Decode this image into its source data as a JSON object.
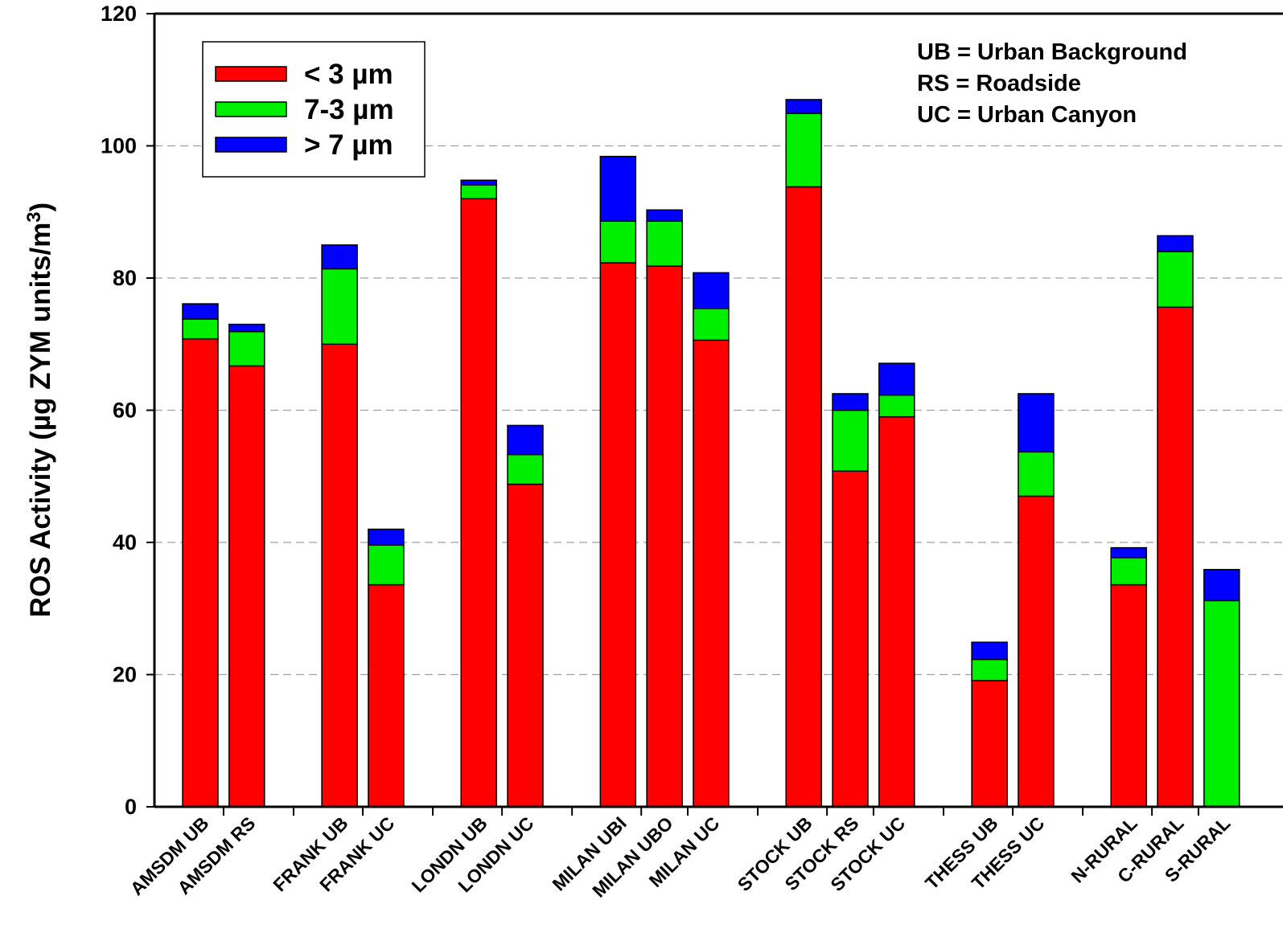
{
  "chart_data": {
    "type": "bar",
    "stacked": true,
    "title": "",
    "xlabel": "",
    "ylabel": "ROS Activity (µg ZYM units/m",
    "ylabel_superscript": "3",
    "ylabel_suffix": ")",
    "ylim": [
      0,
      120
    ],
    "yticks": [
      "0",
      "20",
      "40",
      "60",
      "80",
      "100",
      "120"
    ],
    "grid": "horizontal dashed",
    "legend_position": "top-left",
    "categories": [
      "AMSDM UB",
      "AMSDM RS",
      "FRANK UB",
      "FRANK UC",
      "LONDN UB",
      "LONDN UC",
      "MILAN UBI",
      "MILAN UBO",
      "MILAN UC",
      "STOCK UB",
      "STOCK RS",
      "STOCK UC",
      "THESS UB",
      "THESS UC",
      "N-RURAL",
      "C-RURAL",
      "S-RURAL"
    ],
    "groups": [
      [
        "AMSDM UB",
        "AMSDM RS"
      ],
      [
        "FRANK UB",
        "FRANK UC"
      ],
      [
        "LONDN UB",
        "LONDN UC"
      ],
      [
        "MILAN UBI",
        "MILAN UBO",
        "MILAN UC"
      ],
      [
        "STOCK UB",
        "STOCK RS",
        "STOCK UC"
      ],
      [
        "THESS UB",
        "THESS UC"
      ],
      [
        "N-RURAL",
        "C-RURAL",
        "S-RURAL"
      ]
    ],
    "series": [
      {
        "name": "< 3 µm",
        "color": "#ff0000",
        "values": [
          70.8,
          66.7,
          70.0,
          33.6,
          92.0,
          48.8,
          82.3,
          81.8,
          70.6,
          93.8,
          50.8,
          59.0,
          19.1,
          47.0,
          33.6,
          75.6,
          0
        ]
      },
      {
        "name": "7-3 µm",
        "color": "#00ee00",
        "values": [
          3.0,
          5.2,
          11.4,
          6.0,
          2.1,
          4.5,
          6.3,
          6.8,
          4.8,
          11.1,
          9.2,
          3.3,
          3.2,
          6.7,
          4.1,
          8.4,
          31.2
        ]
      },
      {
        "name": "> 7 µm",
        "color": "#0000ff",
        "values": [
          2.3,
          1.1,
          3.6,
          2.4,
          0.7,
          4.4,
          9.8,
          1.7,
          5.4,
          2.1,
          2.5,
          4.8,
          2.6,
          8.8,
          1.5,
          2.4,
          4.7
        ]
      }
    ],
    "annotations": [
      "UB = Urban Background",
      "RS = Roadside",
      "UC = Urban Canyon"
    ]
  }
}
